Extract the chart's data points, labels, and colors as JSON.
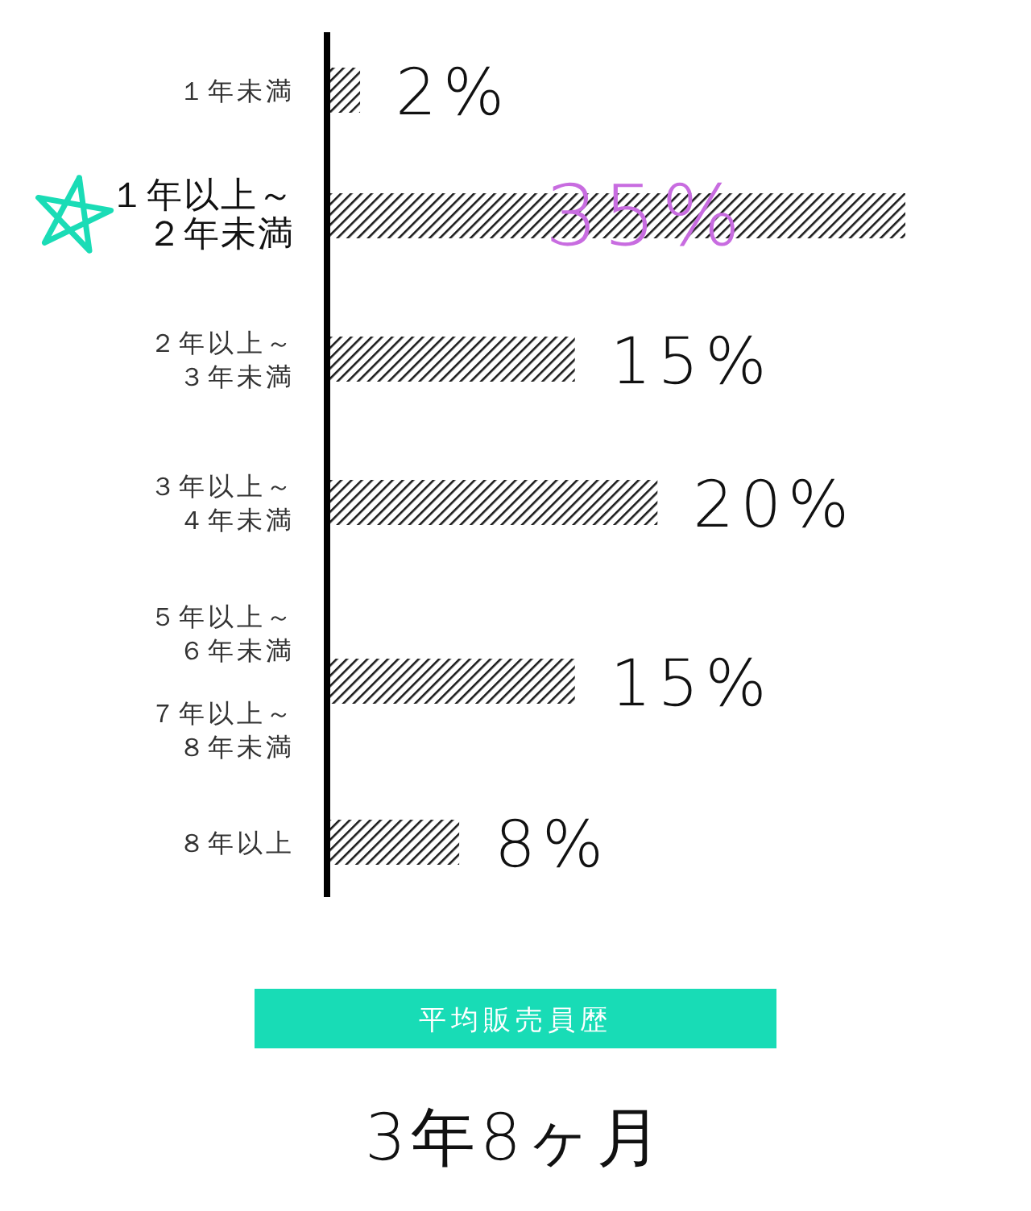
{
  "chart_data": {
    "type": "bar",
    "orientation": "horizontal",
    "categories": [
      "１年未満",
      "１年以上～２年未満",
      "２年以上～３年未満",
      "３年以上～４年未満",
      "５年以上～６年未満７年以上～８年未満",
      "８年以上"
    ],
    "values": [
      2,
      35,
      15,
      20,
      15,
      8
    ],
    "value_labels": [
      "2%",
      "35%",
      "15%",
      "20%",
      "15%",
      "8%"
    ],
    "color": "#1a1a1a",
    "annotations": [
      "平均販売員歴",
      "3年8ヶ月"
    ]
  }
}
